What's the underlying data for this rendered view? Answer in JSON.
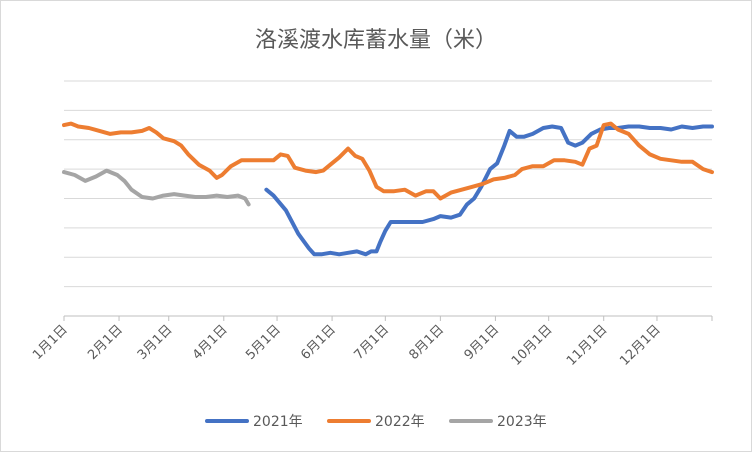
{
  "chart_data": {
    "type": "line",
    "title": "洛溪渡水库蓄水量（米）",
    "x_ticks": [
      "1月1日",
      "2月1日",
      "3月1日",
      "4月1日",
      "5月1日",
      "6月1日",
      "7月1日",
      "8月1日",
      "9月1日",
      "10月1日",
      "11月1日",
      "12月1日"
    ],
    "x_domain_days": [
      0,
      365
    ],
    "y_gridlines": 8,
    "y_axis_labels_visible": false,
    "grid": true,
    "legend_position": "bottom",
    "series": [
      {
        "name": "2021年",
        "color": "#4472c4",
        "points": [
          [
            114,
            -0.4
          ],
          [
            118,
            -0.6
          ],
          [
            125,
            -1.1
          ],
          [
            132,
            -1.9
          ],
          [
            138,
            -2.4
          ],
          [
            141,
            -2.6
          ],
          [
            145,
            -2.6
          ],
          [
            150,
            -2.55
          ],
          [
            155,
            -2.6
          ],
          [
            160,
            -2.55
          ],
          [
            165,
            -2.5
          ],
          [
            170,
            -2.6
          ],
          [
            173,
            -2.5
          ],
          [
            176,
            -2.5
          ],
          [
            178,
            -2.2
          ],
          [
            181,
            -1.8
          ],
          [
            184,
            -1.5
          ],
          [
            190,
            -1.5
          ],
          [
            196,
            -1.5
          ],
          [
            202,
            -1.5
          ],
          [
            208,
            -1.4
          ],
          [
            212,
            -1.3
          ],
          [
            218,
            -1.35
          ],
          [
            223,
            -1.25
          ],
          [
            227,
            -0.9
          ],
          [
            231,
            -0.7
          ],
          [
            235,
            -0.3
          ],
          [
            240,
            0.3
          ],
          [
            244,
            0.5
          ],
          [
            248,
            1.1
          ],
          [
            251,
            1.6
          ],
          [
            255,
            1.4
          ],
          [
            259,
            1.4
          ],
          [
            264,
            1.5
          ],
          [
            270,
            1.7
          ],
          [
            275,
            1.75
          ],
          [
            280,
            1.7
          ],
          [
            284,
            1.2
          ],
          [
            288,
            1.1
          ],
          [
            292,
            1.2
          ],
          [
            297,
            1.5
          ],
          [
            302,
            1.65
          ],
          [
            307,
            1.7
          ],
          [
            312,
            1.7
          ],
          [
            318,
            1.75
          ],
          [
            324,
            1.75
          ],
          [
            330,
            1.7
          ],
          [
            336,
            1.7
          ],
          [
            342,
            1.65
          ],
          [
            348,
            1.75
          ],
          [
            354,
            1.7
          ],
          [
            360,
            1.75
          ],
          [
            365,
            1.75
          ]
        ]
      },
      {
        "name": "2022年",
        "color": "#ed7d31",
        "points": [
          [
            0,
            1.8
          ],
          [
            4,
            1.85
          ],
          [
            8,
            1.75
          ],
          [
            14,
            1.7
          ],
          [
            20,
            1.6
          ],
          [
            26,
            1.5
          ],
          [
            32,
            1.55
          ],
          [
            38,
            1.55
          ],
          [
            44,
            1.6
          ],
          [
            48,
            1.7
          ],
          [
            52,
            1.55
          ],
          [
            56,
            1.35
          ],
          [
            62,
            1.25
          ],
          [
            66,
            1.1
          ],
          [
            70,
            0.8
          ],
          [
            76,
            0.45
          ],
          [
            82,
            0.25
          ],
          [
            86,
            0.0
          ],
          [
            89,
            0.1
          ],
          [
            94,
            0.4
          ],
          [
            100,
            0.6
          ],
          [
            106,
            0.6
          ],
          [
            112,
            0.6
          ],
          [
            118,
            0.6
          ],
          [
            122,
            0.8
          ],
          [
            126,
            0.75
          ],
          [
            130,
            0.35
          ],
          [
            136,
            0.25
          ],
          [
            142,
            0.2
          ],
          [
            146,
            0.25
          ],
          [
            150,
            0.45
          ],
          [
            155,
            0.7
          ],
          [
            160,
            1.0
          ],
          [
            164,
            0.75
          ],
          [
            168,
            0.65
          ],
          [
            172,
            0.25
          ],
          [
            176,
            -0.3
          ],
          [
            180,
            -0.45
          ],
          [
            186,
            -0.45
          ],
          [
            192,
            -0.4
          ],
          [
            198,
            -0.6
          ],
          [
            204,
            -0.45
          ],
          [
            208,
            -0.45
          ],
          [
            212,
            -0.7
          ],
          [
            218,
            -0.5
          ],
          [
            224,
            -0.4
          ],
          [
            230,
            -0.3
          ],
          [
            236,
            -0.2
          ],
          [
            242,
            -0.05
          ],
          [
            248,
            0.0
          ],
          [
            254,
            0.1
          ],
          [
            258,
            0.3
          ],
          [
            264,
            0.4
          ],
          [
            270,
            0.4
          ],
          [
            276,
            0.6
          ],
          [
            282,
            0.6
          ],
          [
            288,
            0.55
          ],
          [
            292,
            0.45
          ],
          [
            296,
            1.0
          ],
          [
            300,
            1.1
          ],
          [
            304,
            1.8
          ],
          [
            308,
            1.85
          ],
          [
            312,
            1.65
          ],
          [
            318,
            1.5
          ],
          [
            324,
            1.1
          ],
          [
            330,
            0.8
          ],
          [
            336,
            0.65
          ],
          [
            342,
            0.6
          ],
          [
            348,
            0.55
          ],
          [
            354,
            0.55
          ],
          [
            360,
            0.3
          ],
          [
            365,
            0.2
          ]
        ]
      },
      {
        "name": "2023年",
        "color": "#a5a5a5",
        "points": [
          [
            0,
            0.2
          ],
          [
            6,
            0.1
          ],
          [
            12,
            -0.1
          ],
          [
            18,
            0.05
          ],
          [
            24,
            0.25
          ],
          [
            30,
            0.1
          ],
          [
            34,
            -0.1
          ],
          [
            38,
            -0.4
          ],
          [
            44,
            -0.65
          ],
          [
            50,
            -0.7
          ],
          [
            56,
            -0.6
          ],
          [
            62,
            -0.55
          ],
          [
            68,
            -0.6
          ],
          [
            74,
            -0.65
          ],
          [
            80,
            -0.65
          ],
          [
            86,
            -0.6
          ],
          [
            92,
            -0.65
          ],
          [
            98,
            -0.6
          ],
          [
            102,
            -0.7
          ],
          [
            104,
            -0.9
          ]
        ]
      }
    ]
  }
}
